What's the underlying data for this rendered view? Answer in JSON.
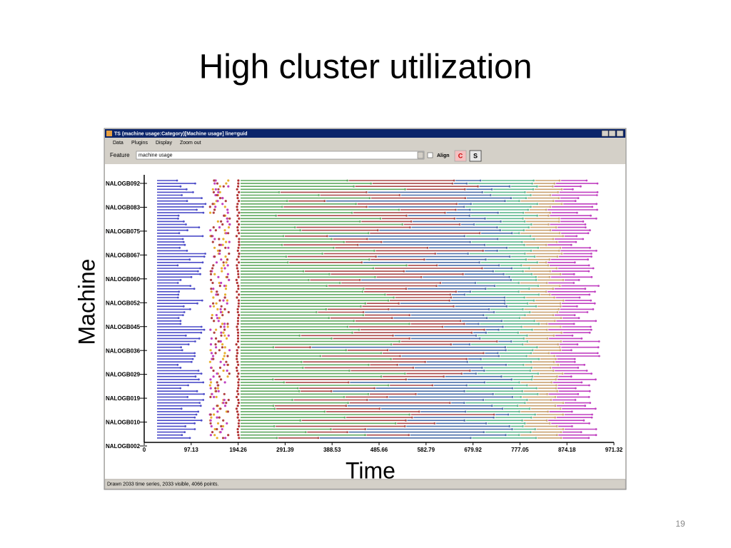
{
  "slide": {
    "title": "High cluster utilization",
    "page_number": "19"
  },
  "window": {
    "title": "TS (machine usage:Category)[Machine usage] line=guid",
    "menu": [
      "Data",
      "Plugins",
      "Display",
      "Zoom out"
    ],
    "feature_label": "Feature",
    "feature_value": "machine usage",
    "align_label": "Align",
    "buttons": [
      "C",
      "S"
    ],
    "status": "Drawn 2033 time series, 2033 visible, 4066 points."
  },
  "chart": {
    "ylabel": "Machine",
    "xlabel": "Time",
    "categories": [
      "NALOGB092",
      "NALOGB083",
      "NALOGB075",
      "NALOGB067",
      "NALOGB060",
      "NALOGB052",
      "NALOGB045",
      "NALOGB036",
      "NALOGB029",
      "NALOGB019",
      "NALOGB010",
      "NALOGB002"
    ],
    "xlim": [
      0,
      971.32
    ],
    "xticks": [
      0,
      97.13,
      194.26,
      291.39,
      388.53,
      485.66,
      582.79,
      679.92,
      777.05,
      874.18,
      971.32
    ]
  }
}
